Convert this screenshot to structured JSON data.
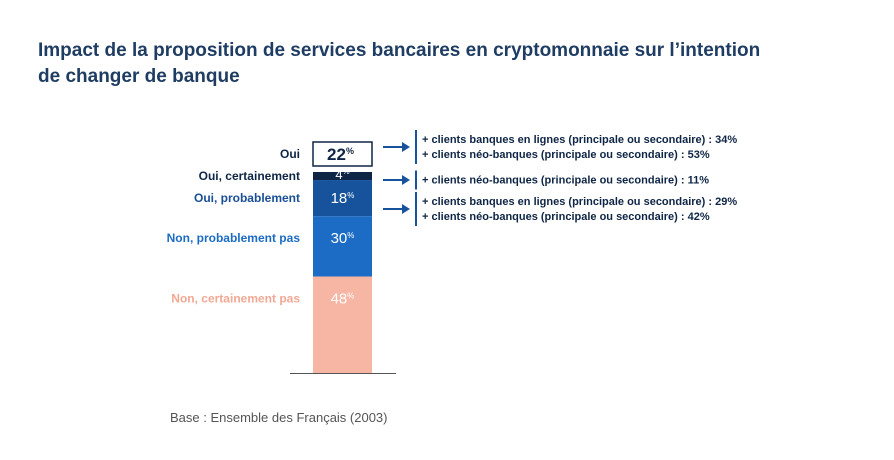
{
  "title": {
    "line1": "Impact de la proposition de services bancaires en cryptomonnaie sur l’intention",
    "line2": "de changer de banque"
  },
  "base_note": "Base : Ensemble des Français (2003)",
  "chart_data": {
    "type": "bar",
    "title": "Impact de la proposition de services bancaires en cryptomonnaie sur l’intention de changer de banque",
    "unit": "%",
    "total": {
      "label": "Oui",
      "value": 22
    },
    "segments": [
      {
        "label": "Oui, certainement",
        "value": 4,
        "color": "#0e2545",
        "label_color": "#0e2545"
      },
      {
        "label": "Oui, probablement",
        "value": 18,
        "color": "#17539c",
        "label_color": "#1a4f97"
      },
      {
        "label": "Non, probablement pas",
        "value": 30,
        "color": "#1c6cc5",
        "label_color": "#1c6cc5"
      },
      {
        "label": "Non, certainement pas",
        "value": 48,
        "color": "#f7b6a4",
        "label_color": "#f3a894"
      }
    ],
    "annotations": [
      {
        "target": "Oui",
        "lines": [
          "+ clients banques en lignes (principale ou secondaire) : 34%",
          "+ clients néo-banques (principale ou secondaire) : 53%"
        ]
      },
      {
        "target": "Oui, certainement",
        "lines": [
          "+ clients néo-banques (principale ou secondaire) : 11%"
        ]
      },
      {
        "target": "Oui, probablement",
        "lines": [
          "+ clients banques en lignes (principale ou secondaire) : 29%",
          "+ clients néo-banques (principale ou secondaire) : 42%"
        ]
      }
    ],
    "colors": {
      "box_border": "#0e2545",
      "arrow": "#17539c",
      "baseline": "#555555"
    }
  }
}
